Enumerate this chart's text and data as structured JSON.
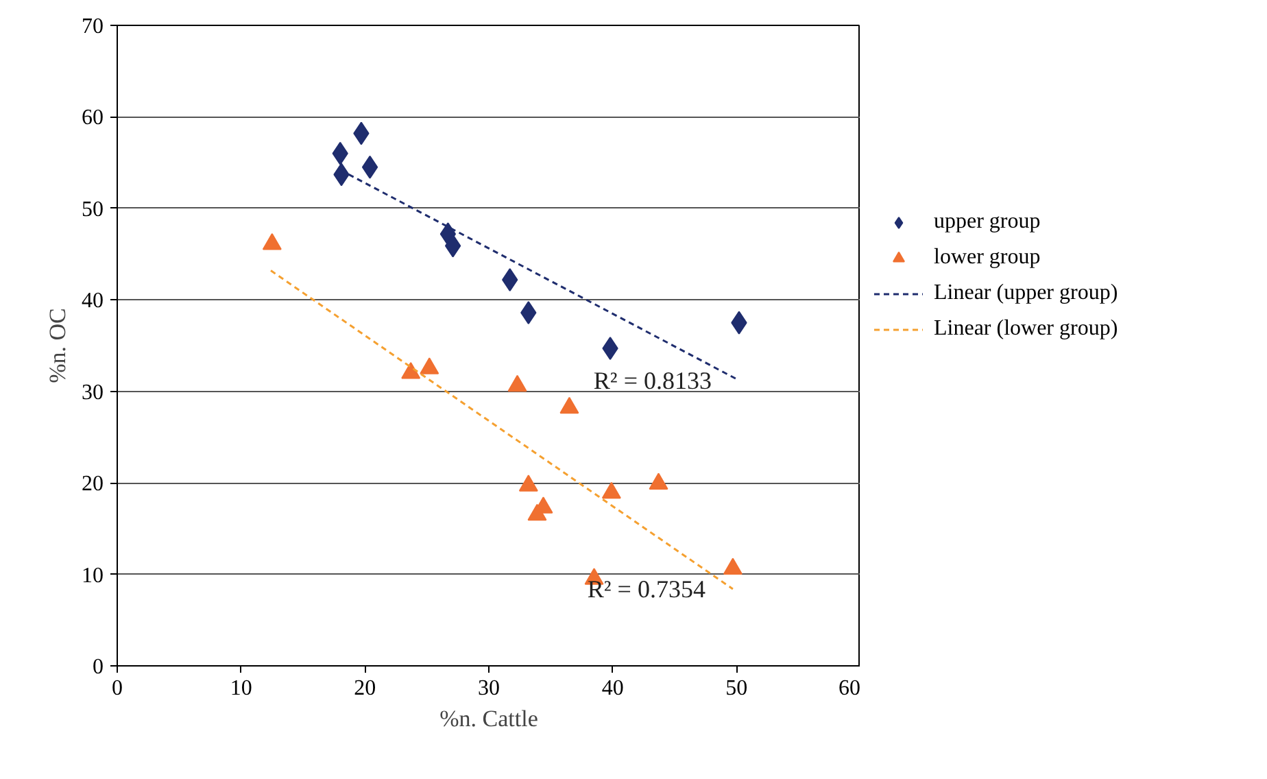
{
  "chart_data": {
    "type": "scatter",
    "xlabel": "%n. Cattle",
    "ylabel": "%n. OC",
    "xlim": [
      0,
      60
    ],
    "ylim": [
      0,
      70
    ],
    "xticks": [
      0,
      10,
      20,
      30,
      40,
      50,
      60
    ],
    "yticks": [
      0,
      10,
      20,
      30,
      40,
      50,
      60,
      70
    ],
    "grid": "y",
    "legend": "right",
    "series": [
      {
        "name": "upper group",
        "marker": "diamond",
        "color": "#1f2d6e",
        "x": [
          19.7,
          18.0,
          18.1,
          20.4,
          26.7,
          27.1,
          31.7,
          33.2,
          39.8,
          50.2
        ],
        "values": [
          58.2,
          56.0,
          53.7,
          54.5,
          47.2,
          45.9,
          42.2,
          38.6,
          34.7,
          37.5
        ]
      },
      {
        "name": "lower group",
        "marker": "triangle",
        "color": "#f07030",
        "x": [
          12.5,
          23.7,
          25.2,
          32.3,
          36.5,
          33.2,
          34.4,
          33.9,
          39.9,
          43.7,
          49.7,
          38.5
        ],
        "values": [
          46.1,
          32.0,
          32.5,
          30.6,
          28.2,
          19.7,
          17.3,
          16.5,
          18.9,
          19.9,
          10.6,
          9.5
        ]
      },
      {
        "name": "Linear (upper group)",
        "type": "line",
        "marker": "none",
        "line_style": "dashed",
        "color": "#1f2d6e",
        "x": [
          18.0,
          50.2
        ],
        "values": [
          54.2,
          31.2
        ]
      },
      {
        "name": "Linear (lower group)",
        "type": "line",
        "marker": "none",
        "line_style": "dashed",
        "color": "#f5a030",
        "x": [
          12.4,
          49.7
        ],
        "values": [
          43.2,
          8.4
        ]
      }
    ],
    "annotations": [
      {
        "text": "R² = 0.8133",
        "x": 50.2,
        "y": 31.2
      },
      {
        "text": "R² = 0.7354",
        "x": 49.7,
        "y": 8.4
      }
    ]
  }
}
